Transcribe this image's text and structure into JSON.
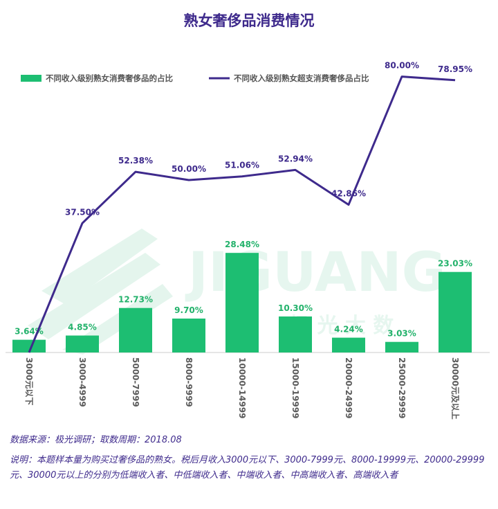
{
  "chart_data": {
    "type": "bar",
    "title": "熟女奢侈品消费情况",
    "categories": [
      "3000元以下",
      "3000-4999",
      "5000-7999",
      "8000-9999",
      "10000-14999",
      "15000-19999",
      "20000-24999",
      "25000-29999",
      "30000元及以上"
    ],
    "series": [
      {
        "name": "不同收入级别熟女消费奢侈品的占比",
        "type": "bar",
        "color": "#1dbe72",
        "values": [
          3.64,
          4.85,
          12.73,
          9.7,
          28.48,
          10.3,
          4.24,
          3.03,
          23.03
        ],
        "labels": [
          "3.64%",
          "4.85%",
          "12.73%",
          "9.70%",
          "28.48%",
          "10.30%",
          "4.24%",
          "3.03%",
          "23.03%"
        ]
      },
      {
        "name": "不同收入级别熟女超支消费奢侈品占比",
        "type": "line",
        "color": "#3e2a8c",
        "values": [
          0,
          37.5,
          52.38,
          50.0,
          51.06,
          52.94,
          42.86,
          80.0,
          78.95
        ],
        "labels": [
          "",
          "37.50%",
          "52.38%",
          "50.00%",
          "51.06%",
          "52.94%",
          "42.86%",
          "80.00%",
          "78.95%"
        ]
      }
    ],
    "legend": "top-left",
    "grid": false
  },
  "watermark": {
    "brand": "JIGUANG",
    "cn": "极 光 大 数"
  },
  "footer": {
    "source": "数据来源：极光调研；取数周期：2018.08",
    "note": "说明：本题样本量为购买过奢侈品的熟女。税后月收入3000元以下、3000-7999元、8000-19999元、20000-29999元、30000元以上的分别为低端收入者、中低端收入者、中端收入者、中高端收入者、高端收入者"
  }
}
